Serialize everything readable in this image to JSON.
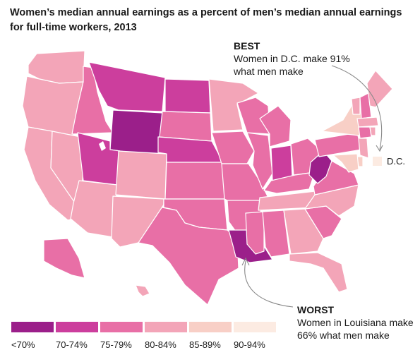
{
  "title": "Women’s median annual earnings as a percent of men’s median annual earnings for full-time workers, 2013",
  "best": {
    "head": "BEST",
    "body": "Women in D.C. make 91% what men make"
  },
  "worst": {
    "head": "WORST",
    "body": "Women in Louisiana make 66% what men make"
  },
  "dc_label": "D.C.",
  "legend": [
    {
      "label": "<70%",
      "color": "#9b1f8a"
    },
    {
      "label": "70-74%",
      "color": "#cc3e9d"
    },
    {
      "label": "75-79%",
      "color": "#e86fa6"
    },
    {
      "label": "80-84%",
      "color": "#f3a5b8"
    },
    {
      "label": "85-89%",
      "color": "#f8cfc6"
    },
    {
      "label": "90-94%",
      "color": "#fcebe2"
    }
  ],
  "map_data": {
    "WA": 3,
    "OR": 3,
    "CA": 3,
    "NV": 3,
    "ID": 2,
    "MT": 1,
    "WY": 0,
    "UT": 1,
    "AZ": 3,
    "CO": 3,
    "NM": 3,
    "ND": 1,
    "SD": 2,
    "NE": 1,
    "KS": 2,
    "OK": 2,
    "TX": 2,
    "MN": 3,
    "IA": 2,
    "MO": 2,
    "AR": 2,
    "LA": 0,
    "WI": 2,
    "IL": 2,
    "MI": 2,
    "IN": 1,
    "OH": 2,
    "KY": 2,
    "TN": 3,
    "MS": 2,
    "AL": 2,
    "GA": 3,
    "FL": 3,
    "SC": 2,
    "NC": 3,
    "VA": 2,
    "WV": 0,
    "PA": 2,
    "NY": 4,
    "VT": 3,
    "NH": 2,
    "ME": 3,
    "MA": 3,
    "CT": 2,
    "RI": 3,
    "NJ": 3,
    "DE": 4,
    "MD": 4,
    "AK": 2,
    "HI": 3,
    "DC": 5
  }
}
